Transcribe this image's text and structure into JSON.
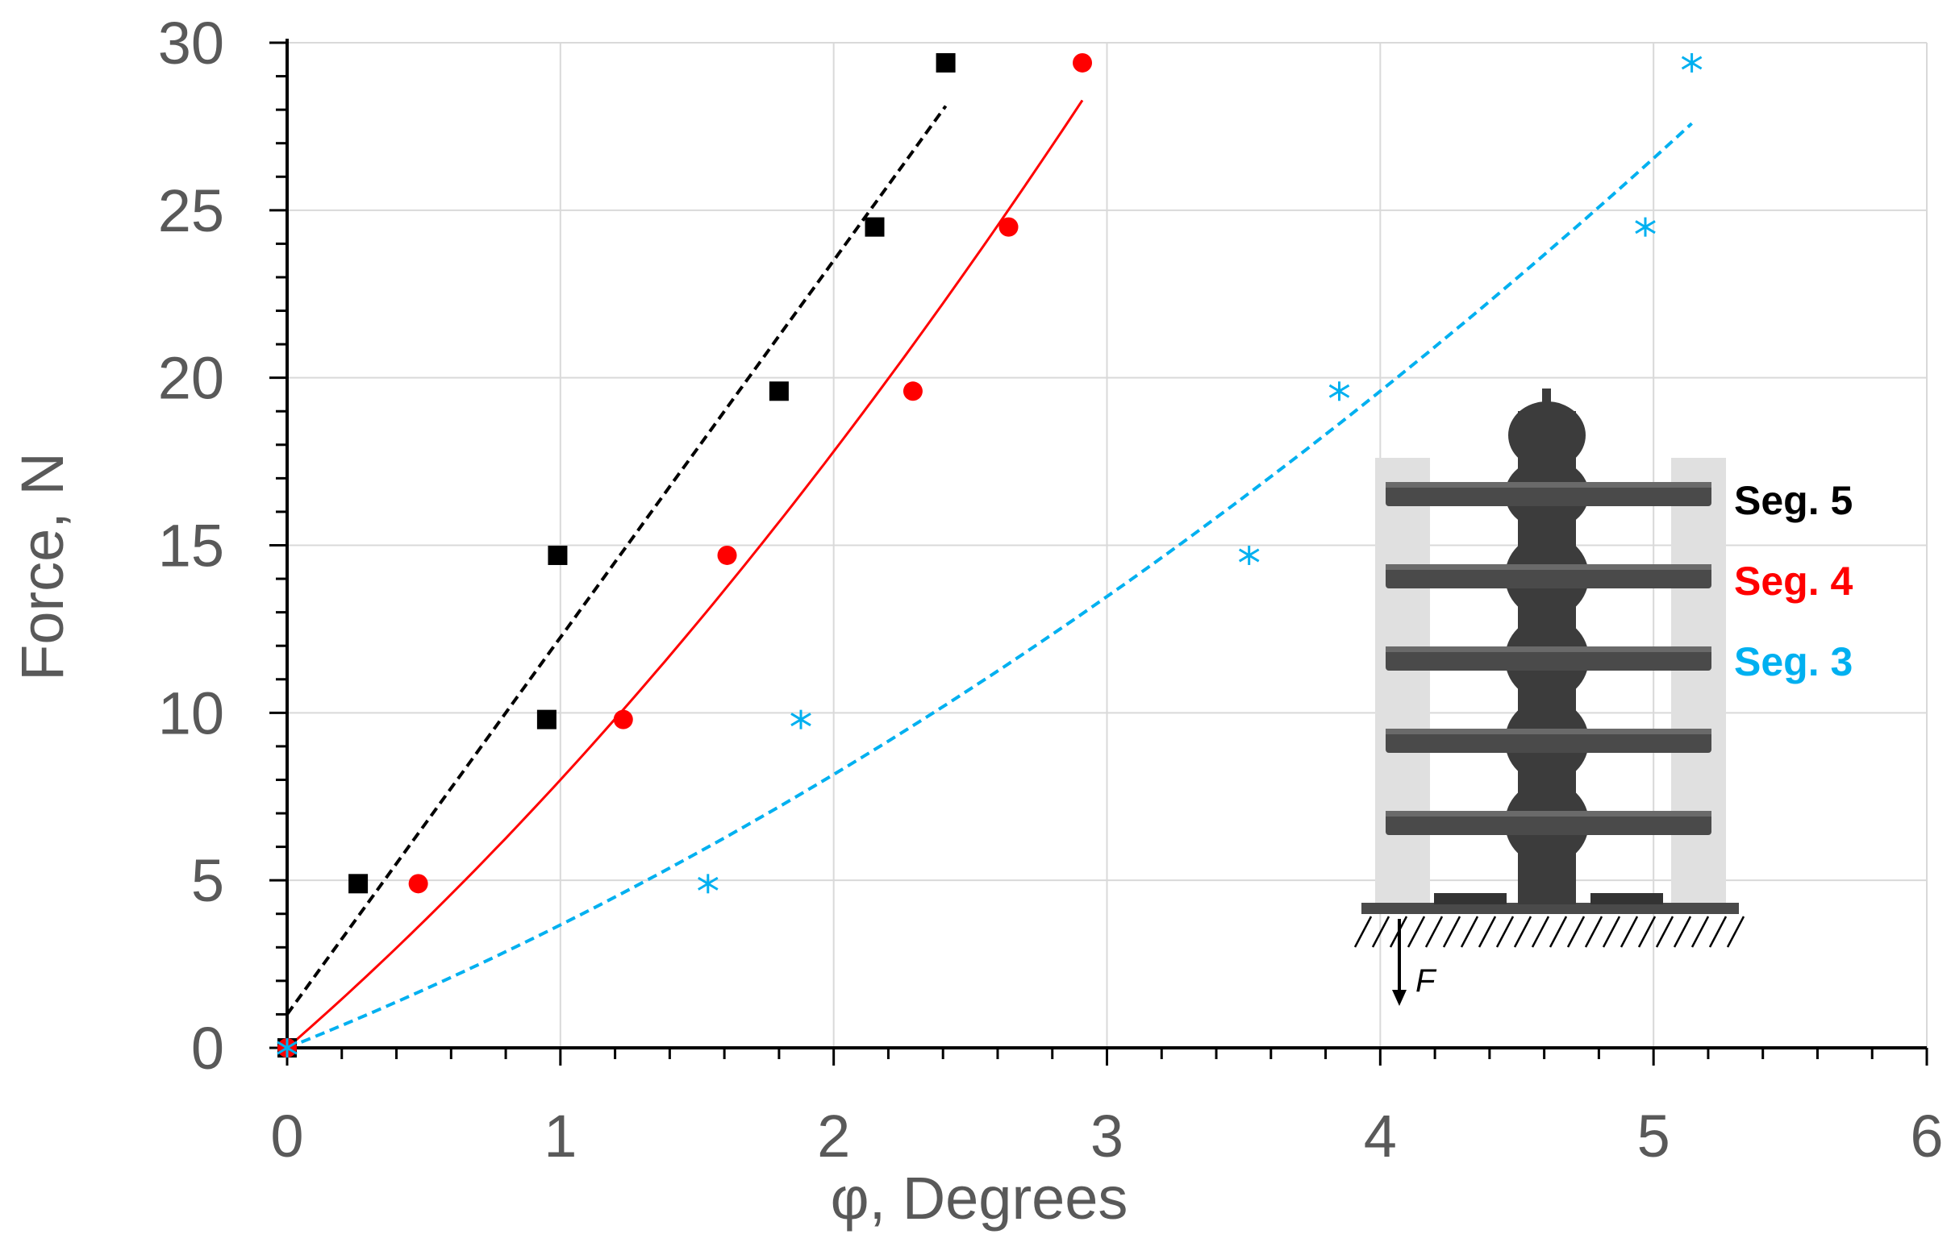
{
  "chart_data": {
    "type": "scatter",
    "xlabel": "φ, Degrees",
    "ylabel": "Force, N",
    "xlim": [
      0,
      6
    ],
    "ylim": [
      0,
      30
    ],
    "xticks": [
      "0",
      "1",
      "2",
      "3",
      "4",
      "5",
      "6"
    ],
    "yticks": [
      "0",
      "5",
      "10",
      "15",
      "20",
      "25",
      "30"
    ],
    "grid": true,
    "legend_placement": "inset-right",
    "series": [
      {
        "name": "Seg. 5",
        "color": "#000000",
        "marker": "square",
        "points": [
          [
            0,
            0
          ],
          [
            0.26,
            4.9
          ],
          [
            0.95,
            9.8
          ],
          [
            0.99,
            14.7
          ],
          [
            1.8,
            19.6
          ],
          [
            2.15,
            24.5
          ],
          [
            2.41,
            29.4
          ]
        ],
        "trendline": {
          "style": "dashed",
          "x_range": [
            0,
            2.41
          ],
          "coef": [
            1.0,
            11.25,
            0.0
          ]
        }
      },
      {
        "name": "Seg. 4",
        "color": "#ff0000",
        "marker": "circle",
        "points": [
          [
            0,
            0
          ],
          [
            0.48,
            4.9
          ],
          [
            1.23,
            9.8
          ],
          [
            1.61,
            14.7
          ],
          [
            2.29,
            19.6
          ],
          [
            2.64,
            24.5
          ],
          [
            2.91,
            29.4
          ]
        ],
        "trendline": {
          "style": "solid",
          "x_range": [
            0,
            2.91
          ],
          "coef": [
            0.0,
            7.1,
            0.9
          ]
        }
      },
      {
        "name": "Seg. 3",
        "color": "#00b0f0",
        "marker": "asterisk",
        "points": [
          [
            0,
            0
          ],
          [
            1.54,
            4.9
          ],
          [
            1.88,
            9.8
          ],
          [
            3.52,
            14.7
          ],
          [
            3.85,
            19.6
          ],
          [
            4.97,
            24.5
          ],
          [
            5.14,
            29.4
          ]
        ],
        "trendline": {
          "style": "dashed",
          "x_range": [
            0,
            5.14
          ],
          "coef": [
            0.0,
            3.26,
            0.41
          ]
        }
      }
    ]
  },
  "inset": {
    "force_label": "F"
  }
}
